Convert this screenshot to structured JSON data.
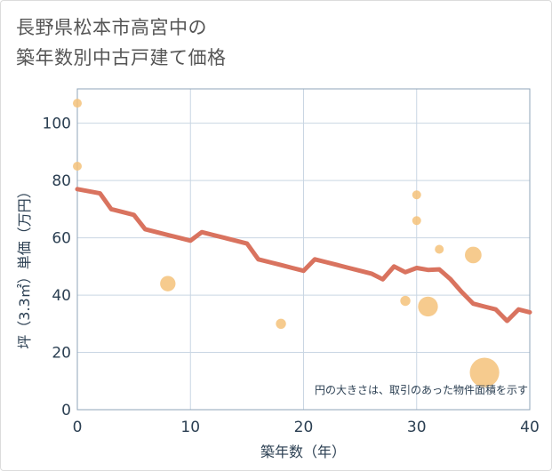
{
  "chart_data": {
    "type": "scatter",
    "title_line1": "長野県松本市高宮中の",
    "title_line2": "築年数別中古戸建て価格",
    "xlabel": "築年数（年）",
    "ylabel": "坪（3.3㎡）単価（万円）",
    "xlim": [
      0,
      40
    ],
    "ylim": [
      0,
      112
    ],
    "xticks": [
      0,
      10,
      20,
      30,
      40
    ],
    "yticks": [
      0,
      20,
      40,
      60,
      80,
      100
    ],
    "grid": true,
    "note": "円の大きさは、取引のあった物件面積を示す",
    "colors": {
      "line": "#d9735f",
      "bubble": "#f5c27a",
      "grid": "#c9d6e3",
      "plot_border": "#8fa4b8"
    },
    "bubbles": [
      {
        "x": 0,
        "y": 107,
        "size": 1
      },
      {
        "x": 0,
        "y": 85,
        "size": 1
      },
      {
        "x": 8,
        "y": 44,
        "size": 3
      },
      {
        "x": 18,
        "y": 30,
        "size": 1.3
      },
      {
        "x": 29,
        "y": 38,
        "size": 1.3
      },
      {
        "x": 30,
        "y": 75,
        "size": 1
      },
      {
        "x": 30,
        "y": 66,
        "size": 1
      },
      {
        "x": 31,
        "y": 36,
        "size": 5
      },
      {
        "x": 32,
        "y": 56,
        "size": 1
      },
      {
        "x": 35,
        "y": 54,
        "size": 3.5
      },
      {
        "x": 36,
        "y": 13,
        "size": 11
      }
    ],
    "trend_line": [
      [
        0,
        77
      ],
      [
        2,
        75.5
      ],
      [
        3,
        70
      ],
      [
        4,
        69
      ],
      [
        5,
        68
      ],
      [
        6,
        63
      ],
      [
        7,
        62
      ],
      [
        8,
        61
      ],
      [
        9,
        60
      ],
      [
        10,
        59
      ],
      [
        11,
        62
      ],
      [
        12,
        61
      ],
      [
        13,
        60
      ],
      [
        14,
        59
      ],
      [
        15,
        58
      ],
      [
        16,
        52.5
      ],
      [
        17,
        51.5
      ],
      [
        18,
        50.5
      ],
      [
        19,
        49.5
      ],
      [
        20,
        48.5
      ],
      [
        21,
        52.5
      ],
      [
        22,
        51.5
      ],
      [
        23,
        50.5
      ],
      [
        24,
        49.5
      ],
      [
        25,
        48.5
      ],
      [
        26,
        47.5
      ],
      [
        27,
        45.5
      ],
      [
        28,
        50
      ],
      [
        29,
        48
      ],
      [
        30,
        49.5
      ],
      [
        31,
        48.8
      ],
      [
        32,
        49
      ],
      [
        33,
        45.5
      ],
      [
        34,
        41
      ],
      [
        35,
        37
      ],
      [
        36,
        36
      ],
      [
        37,
        35
      ],
      [
        38,
        31
      ],
      [
        39,
        35
      ],
      [
        40,
        34
      ]
    ]
  }
}
